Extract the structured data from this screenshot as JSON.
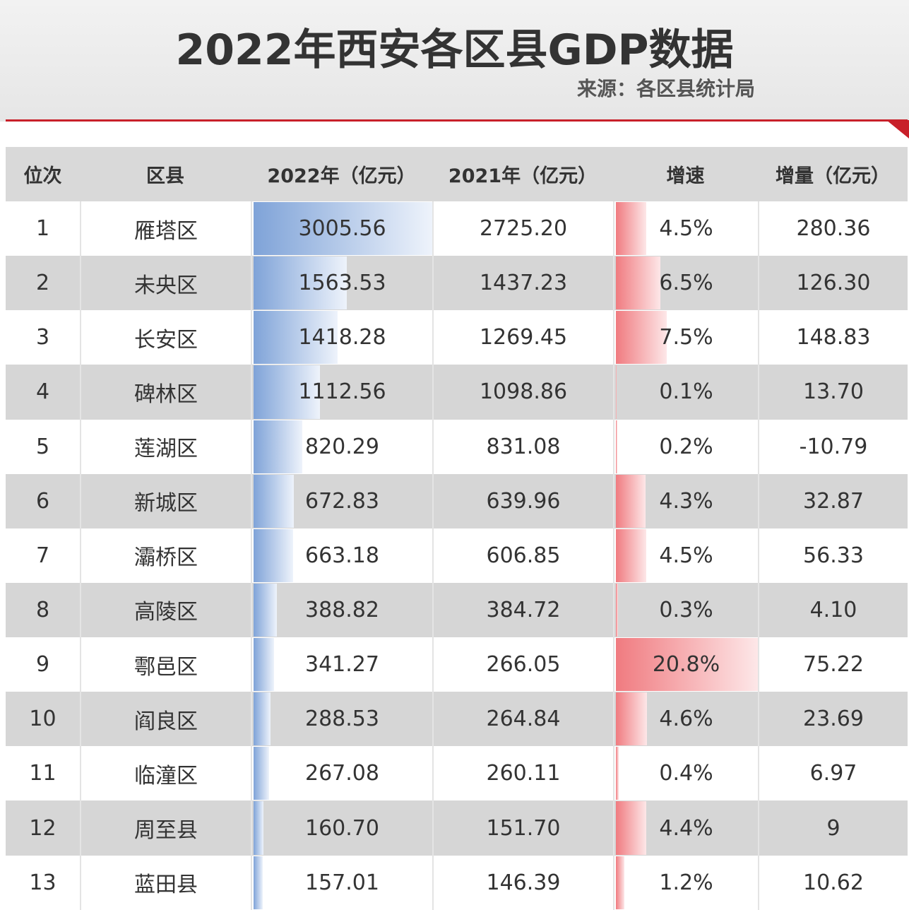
{
  "header": {
    "title": "2022年西安各区县GDP数据",
    "source": "来源：各区县统计局"
  },
  "table": {
    "columns": [
      "位次",
      "区县",
      "2022年（亿元）",
      "2021年（亿元）",
      "增速",
      "增量（亿元）"
    ],
    "rows": [
      [
        "1",
        "雁塔区",
        "3005.56",
        "2725.20",
        "4.5%",
        "280.36"
      ],
      [
        "2",
        "未央区",
        "1563.53",
        "1437.23",
        "6.5%",
        "126.30"
      ],
      [
        "3",
        "长安区",
        "1418.28",
        "1269.45",
        "7.5%",
        "148.83"
      ],
      [
        "4",
        "碑林区",
        "1112.56",
        "1098.86",
        "0.1%",
        "13.70"
      ],
      [
        "5",
        "莲湖区",
        "820.29",
        "831.08",
        "0.2%",
        "-10.79"
      ],
      [
        "6",
        "新城区",
        "672.83",
        "639.96",
        "4.3%",
        "32.87"
      ],
      [
        "7",
        "灞桥区",
        "663.18",
        "606.85",
        "4.5%",
        "56.33"
      ],
      [
        "8",
        "高陵区",
        "388.82",
        "384.72",
        "0.3%",
        "4.10"
      ],
      [
        "9",
        "鄠邑区",
        "341.27",
        "266.05",
        "20.8%",
        "75.22"
      ],
      [
        "10",
        "阎良区",
        "288.53",
        "264.84",
        "4.6%",
        "23.69"
      ],
      [
        "11",
        "临潼区",
        "267.08",
        "260.11",
        "0.4%",
        "6.97"
      ],
      [
        "12",
        "周至县",
        "160.70",
        "151.70",
        "4.4%",
        "9"
      ],
      [
        "13",
        "蓝田县",
        "157.01",
        "146.39",
        "1.2%",
        "10.62"
      ]
    ]
  }
}
